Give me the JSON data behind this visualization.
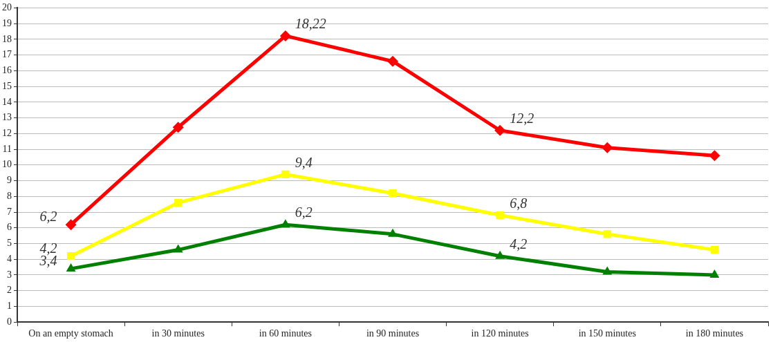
{
  "chart_data": {
    "type": "line",
    "categories": [
      "On an empty stomach",
      "in 30 minutes",
      "in 60 minutes",
      "in 90 minutes",
      "in 120 minutes",
      "in 150 minutes",
      "in 180 minutes"
    ],
    "series": [
      {
        "color": "#ff0000",
        "marker": "diamond",
        "values": [
          6.2,
          12.4,
          18.22,
          16.6,
          12.2,
          11.1,
          10.6
        ],
        "value_labels": [
          "6,2",
          null,
          "18,22",
          null,
          "12,2",
          null,
          null
        ]
      },
      {
        "color": "#ffff00",
        "marker": "square",
        "values": [
          4.2,
          7.6,
          9.4,
          8.2,
          6.8,
          5.6,
          4.6
        ],
        "value_labels": [
          "4,2",
          null,
          "9,4",
          null,
          "6,8",
          null,
          null
        ]
      },
      {
        "color": "#008000",
        "marker": "triangle",
        "values": [
          3.4,
          4.6,
          6.2,
          5.6,
          4.2,
          3.2,
          3.0
        ],
        "value_labels": [
          "3,4",
          null,
          "6,2",
          null,
          "4,2",
          null,
          null
        ]
      }
    ],
    "ylim": [
      0,
      20
    ],
    "yticks": [
      0,
      1,
      2,
      3,
      4,
      5,
      6,
      7,
      8,
      9,
      10,
      11,
      12,
      13,
      14,
      15,
      16,
      17,
      18,
      19,
      20
    ],
    "grid": "y",
    "legend": false,
    "line_style": "solid"
  }
}
